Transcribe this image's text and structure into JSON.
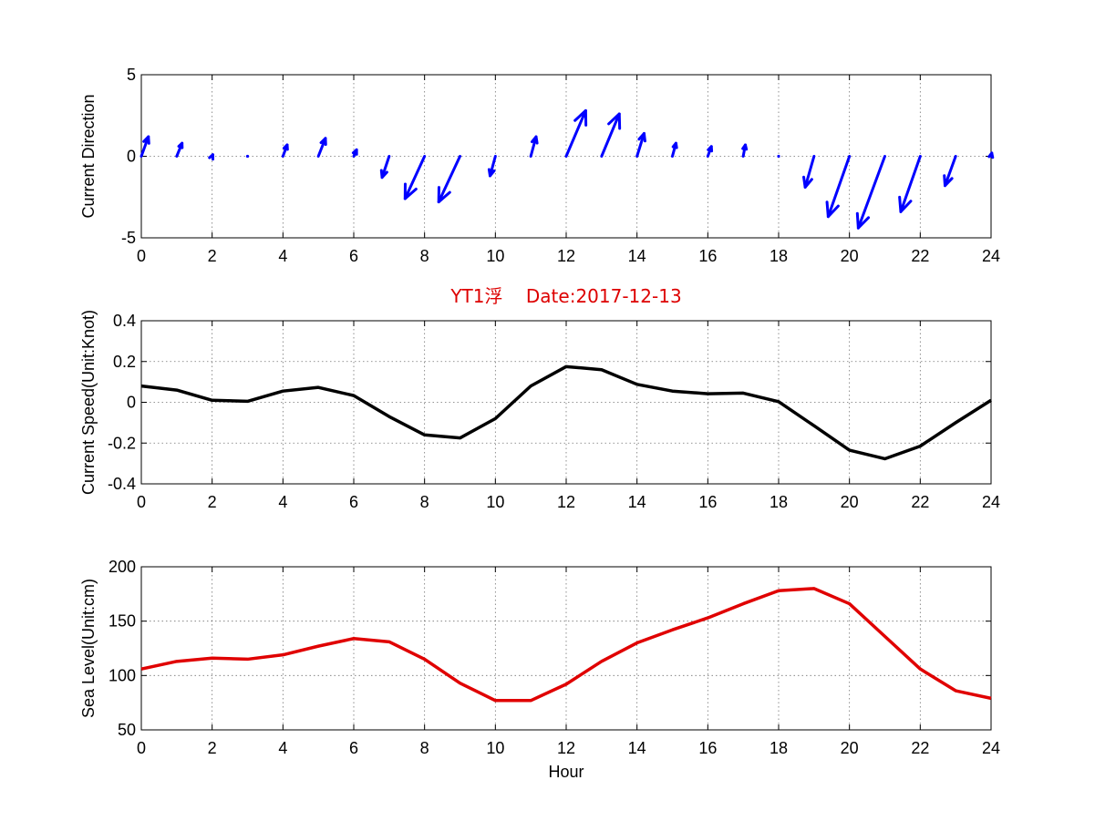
{
  "title": "YT1浮    Date:2017-12-13",
  "colors": {
    "title": "#dd0000",
    "arrow": "#0000ff",
    "speed": "#000000",
    "level": "#e00000"
  },
  "chart_data": [
    {
      "type": "quiver",
      "xlabel": "",
      "ylabel": "Current Direction",
      "xlim": [
        0,
        24
      ],
      "ylim": [
        -5,
        5
      ],
      "xticks": [
        0,
        2,
        4,
        6,
        8,
        10,
        12,
        14,
        16,
        18,
        20,
        22,
        24
      ],
      "yticks": [
        -5,
        0,
        5
      ],
      "grid": true,
      "x": [
        0,
        1,
        2,
        3,
        4,
        5,
        6,
        7,
        8,
        9,
        10,
        11,
        12,
        13,
        14,
        15,
        16,
        17,
        18,
        19,
        20,
        21,
        22,
        23,
        24
      ],
      "u": [
        0.2,
        0.15,
        0.02,
        0.0,
        0.12,
        0.2,
        0.08,
        -0.2,
        -0.55,
        -0.6,
        -0.15,
        0.15,
        0.55,
        0.5,
        0.2,
        0.1,
        0.1,
        0.06,
        0.0,
        -0.25,
        -0.6,
        -0.75,
        -0.55,
        -0.3,
        0.02
      ],
      "v": [
        1.2,
        0.8,
        0.1,
        0.02,
        0.7,
        1.1,
        0.4,
        -1.3,
        -2.6,
        -2.8,
        -1.2,
        1.2,
        2.8,
        2.6,
        1.4,
        0.8,
        0.6,
        0.7,
        0.0,
        -1.9,
        -3.7,
        -4.4,
        -3.4,
        -1.8,
        0.2
      ]
    },
    {
      "type": "line",
      "xlabel": "",
      "ylabel": "Current Speed(Unit:Knot)",
      "xlim": [
        0,
        24
      ],
      "ylim": [
        -0.4,
        0.4
      ],
      "xticks": [
        0,
        2,
        4,
        6,
        8,
        10,
        12,
        14,
        16,
        18,
        20,
        22,
        24
      ],
      "yticks": [
        -0.4,
        -0.2,
        0,
        0.2,
        0.4
      ],
      "ytick_labels": [
        "-0.4",
        "-0.2",
        "0",
        "0.2",
        "0.4"
      ],
      "grid": true,
      "x": [
        0,
        1,
        2,
        3,
        4,
        5,
        6,
        7,
        8,
        9,
        10,
        11,
        12,
        13,
        14,
        15,
        16,
        17,
        18,
        19,
        20,
        21,
        22,
        23,
        24
      ],
      "y": [
        0.08,
        0.06,
        0.01,
        0.005,
        0.055,
        0.073,
        0.033,
        -0.07,
        -0.16,
        -0.175,
        -0.08,
        0.08,
        0.175,
        0.16,
        0.088,
        0.055,
        0.042,
        0.045,
        0.003,
        -0.115,
        -0.235,
        -0.277,
        -0.215,
        -0.1,
        0.01
      ]
    },
    {
      "type": "line",
      "xlabel": "Hour",
      "ylabel": "Sea Level(Unit:cm)",
      "xlim": [
        0,
        24
      ],
      "ylim": [
        50,
        200
      ],
      "xticks": [
        0,
        2,
        4,
        6,
        8,
        10,
        12,
        14,
        16,
        18,
        20,
        22,
        24
      ],
      "yticks": [
        50,
        100,
        150,
        200
      ],
      "grid": true,
      "x": [
        0,
        1,
        2,
        3,
        4,
        5,
        6,
        7,
        8,
        9,
        10,
        11,
        12,
        13,
        14,
        15,
        16,
        17,
        18,
        19,
        20,
        21,
        22,
        23,
        24
      ],
      "y": [
        106,
        113,
        116,
        115,
        119,
        127,
        134,
        131,
        115,
        93,
        77,
        77,
        92,
        113,
        130,
        142,
        153,
        166,
        178,
        180,
        166,
        136,
        106,
        86,
        79
      ]
    }
  ]
}
